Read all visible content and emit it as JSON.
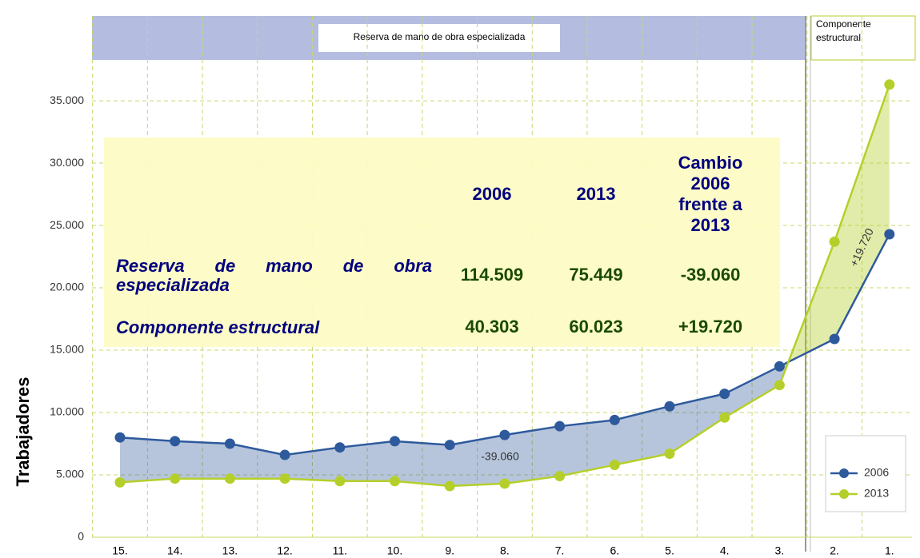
{
  "chart_data": {
    "type": "line",
    "header": "Reserva de mano de obra especializada",
    "header_right": "Componente estructural",
    "ylabel": "Trabajadores",
    "categories": [
      "15.",
      "14.",
      "13.",
      "12.",
      "11.",
      "10.",
      "9.",
      "8.",
      "7.",
      "6.",
      "5.",
      "4.",
      "3.",
      "2.",
      "1."
    ],
    "series": [
      {
        "name": "2006",
        "color": "#2e5a9c",
        "values": [
          8000,
          7700,
          7500,
          6600,
          7200,
          7700,
          7400,
          8200,
          8900,
          9400,
          10500,
          11500,
          13700,
          15900,
          24300
        ]
      },
      {
        "name": "2013",
        "color": "#b5cf2a",
        "values": [
          4400,
          4700,
          4700,
          4700,
          4500,
          4500,
          4100,
          4300,
          4900,
          5800,
          6700,
          9600,
          12200,
          23700,
          36300
        ]
      }
    ],
    "ylim": [
      0,
      41800
    ],
    "yticks": [
      0,
      {
        "value": 5000,
        "label": "5.000"
      },
      {
        "value": 10000,
        "label": "10.000"
      },
      {
        "value": 15000,
        "label": "15.000"
      },
      {
        "value": 20000,
        "label": "20.000"
      },
      {
        "value": 25000,
        "label": "25.000"
      },
      {
        "value": 30000,
        "label": "30.000"
      },
      {
        "value": 35000,
        "label": "35.000"
      }
    ],
    "grid": true,
    "legend": "lower right",
    "annotations": [
      "-39.060",
      "+19.720"
    ],
    "table": {
      "column_headers": [
        "2006",
        "2013",
        "Cambio 2006 frente a 2013"
      ],
      "rows": [
        {
          "label": "Reserva de mano de obra especializada",
          "values": [
            "114.509",
            "75.449",
            "-39.060"
          ]
        },
        {
          "label": "Componente estructural",
          "values": [
            "40.303",
            "60.023",
            "+19.720"
          ]
        }
      ]
    }
  }
}
